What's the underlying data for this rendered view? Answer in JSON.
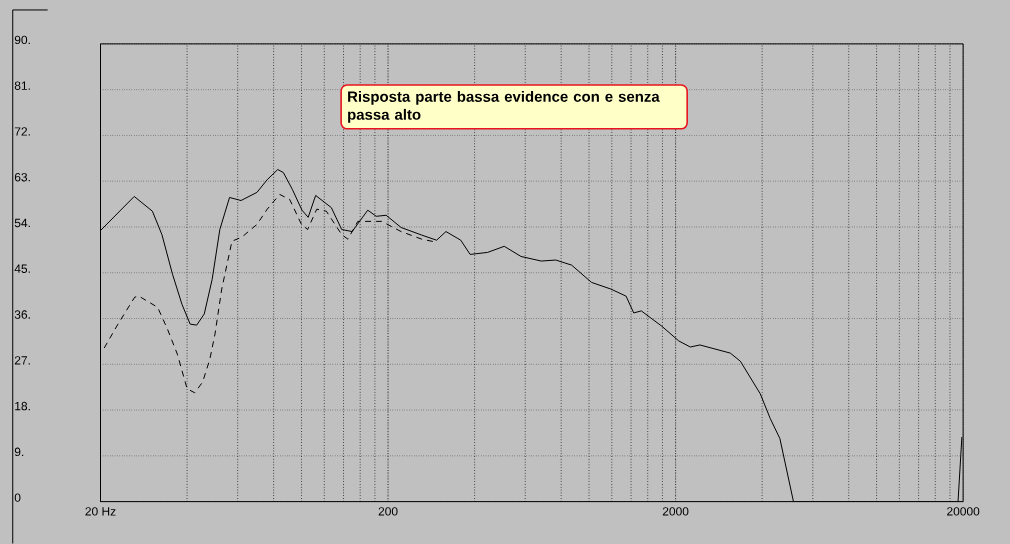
{
  "chart_data": {
    "type": "line",
    "log": "x",
    "grid": true,
    "marker": "none",
    "annotations": [
      "Risposta parte bassa evidence con e senza passa alto"
    ],
    "xlim": [
      20,
      20000
    ],
    "ylim": [
      0,
      90
    ],
    "xticks": [
      {
        "value": 20,
        "label": "20 Hz"
      },
      200,
      2000,
      20000
    ],
    "yticks": [
      {
        "value": 0,
        "label": "0"
      },
      {
        "value": 9,
        "label": "9."
      },
      {
        "value": 18,
        "label": "18."
      },
      {
        "value": 27,
        "label": "27."
      },
      {
        "value": 36,
        "label": "36."
      },
      {
        "value": 45,
        "label": "45."
      },
      {
        "value": 54,
        "label": "54."
      },
      {
        "value": 63,
        "label": "63."
      },
      {
        "value": 72,
        "label": "72."
      },
      {
        "value": 81,
        "label": "81."
      },
      {
        "value": 90,
        "label": "90."
      }
    ],
    "series": [
      {
        "color": "#000000",
        "line_style": "solid",
        "x": [
          20,
          26.2,
          30.3,
          32.7,
          35.6,
          38.4,
          41,
          43.2,
          45.9,
          48.9,
          52,
          56.2,
          61.6,
          70,
          76,
          82.7,
          86.5,
          92.9,
          100.4,
          105.5,
          112,
          127,
          138,
          150,
          170,
          182,
          197,
          222,
          262,
          295,
          318,
          358,
          386,
          444,
          507,
          580,
          682,
          766,
          870,
          1020,
          1190,
          1345,
          1430,
          1520,
          1790,
          2050,
          2250,
          2430,
          3100,
          3360,
          3940,
          4270,
          4610,
          5140,
          null,
          19200,
          19800
        ],
        "values": [
          53.3,
          60,
          57.1,
          52.5,
          44.7,
          38.8,
          34.9,
          34.7,
          36.9,
          43.7,
          53.5,
          59.8,
          59.2,
          60.8,
          63.3,
          65.3,
          64.7,
          61.4,
          57.3,
          55.9,
          60.2,
          57.8,
          53.5,
          53.1,
          57.3,
          56.1,
          56.3,
          53.9,
          52.4,
          51.4,
          53.1,
          51.4,
          48.6,
          49,
          50.2,
          48.2,
          47.3,
          47.5,
          46.5,
          43.1,
          41.8,
          40.4,
          37.1,
          37.5,
          34.5,
          31.6,
          30.4,
          30.8,
          29.2,
          27.6,
          21.2,
          16.3,
          12.4,
          0,
          null,
          0,
          12.7
        ]
      },
      {
        "color": "#000000",
        "line_style": "dashed",
        "x": [
          20.6,
          23,
          26.3,
          27.2,
          31.6,
          34.2,
          37,
          40,
          42.5,
          45.3,
          48,
          50,
          52.8,
          57.3,
          62,
          70,
          76,
          84,
          91,
          100,
          105,
          113,
          122,
          138,
          145,
          157,
          190,
          222,
          262,
          295
        ],
        "values": [
          30.2,
          34.9,
          40.2,
          40.4,
          38.2,
          33.9,
          29,
          22.2,
          21.4,
          23.5,
          28,
          32.9,
          41.8,
          51.2,
          52,
          54.5,
          57.5,
          60.4,
          59.4,
          54.5,
          53.5,
          57.5,
          57.1,
          52.5,
          51.6,
          55.1,
          55.1,
          53.1,
          51.6,
          51
        ]
      }
    ]
  }
}
